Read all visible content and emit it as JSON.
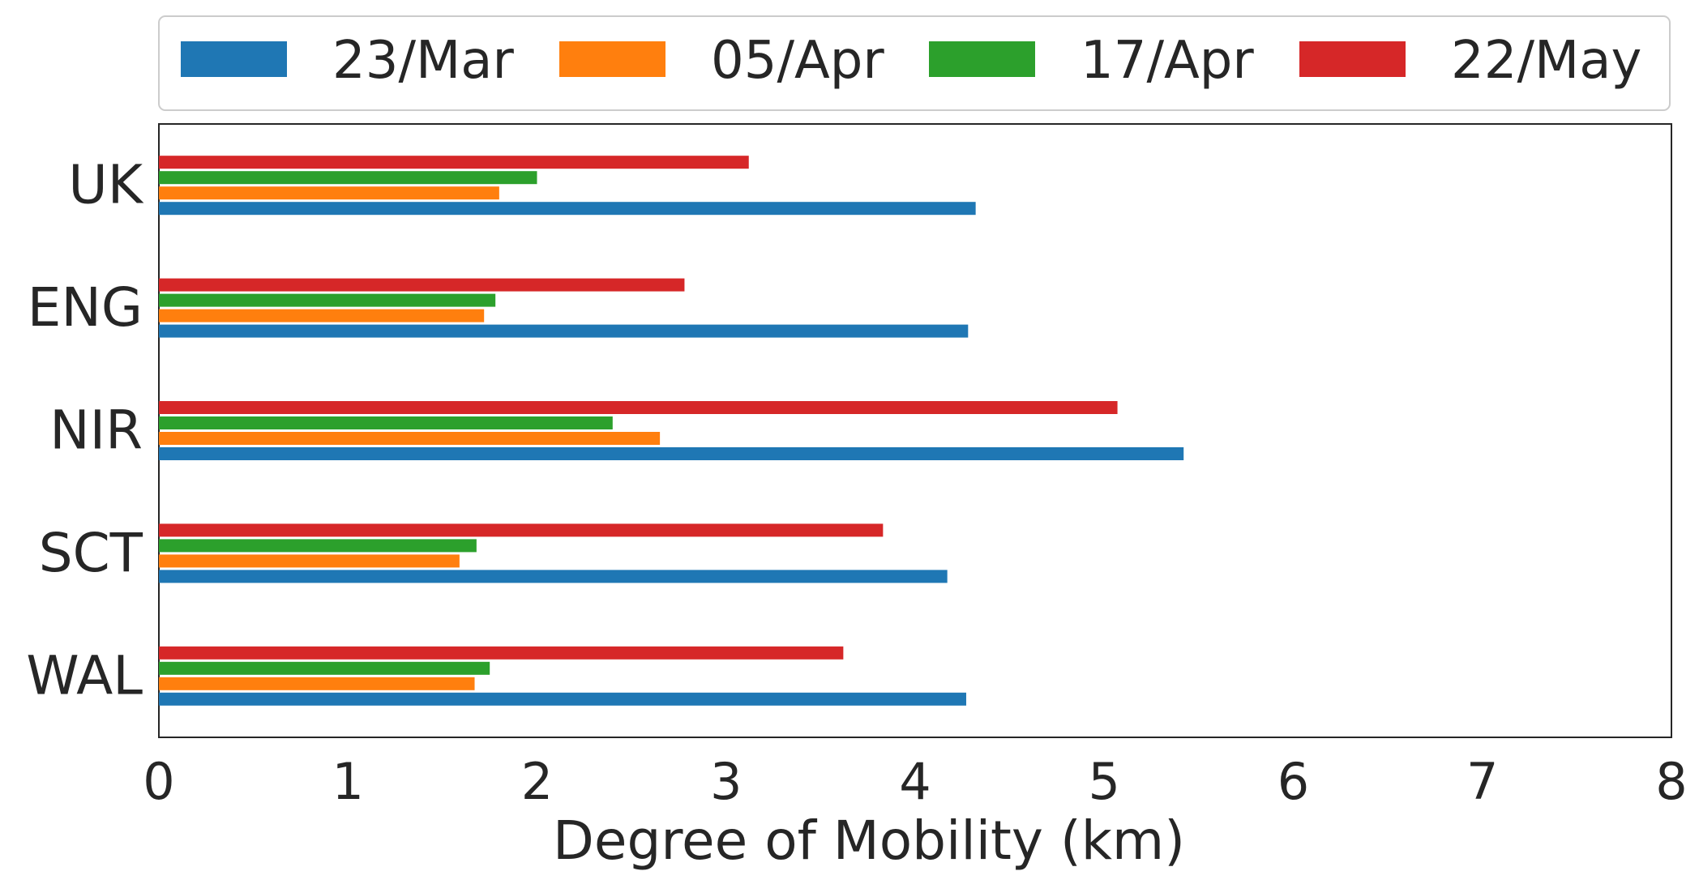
{
  "chart_data": {
    "type": "bar",
    "orientation": "horizontal",
    "categories": [
      "UK",
      "ENG",
      "NIR",
      "SCT",
      "WAL"
    ],
    "series": [
      {
        "name": "23/Mar",
        "color": "#1f77b4",
        "values": [
          4.32,
          4.28,
          5.42,
          4.17,
          4.27
        ]
      },
      {
        "name": "05/Apr",
        "color": "#ff7f0e",
        "values": [
          1.8,
          1.72,
          2.65,
          1.59,
          1.67
        ]
      },
      {
        "name": "17/Apr",
        "color": "#2ca02c",
        "values": [
          2.0,
          1.78,
          2.4,
          1.68,
          1.75
        ]
      },
      {
        "name": "22/May",
        "color": "#d62728",
        "values": [
          3.12,
          2.78,
          5.07,
          3.83,
          3.62
        ]
      }
    ],
    "title": "",
    "xlabel": "Degree of Mobility (km)",
    "ylabel": "",
    "xlim": [
      0,
      8
    ],
    "xticks": [
      "0",
      "1",
      "2",
      "3",
      "4",
      "5",
      "6",
      "7",
      "8"
    ],
    "grid": false,
    "legend": "top, above plot, horizontal"
  }
}
